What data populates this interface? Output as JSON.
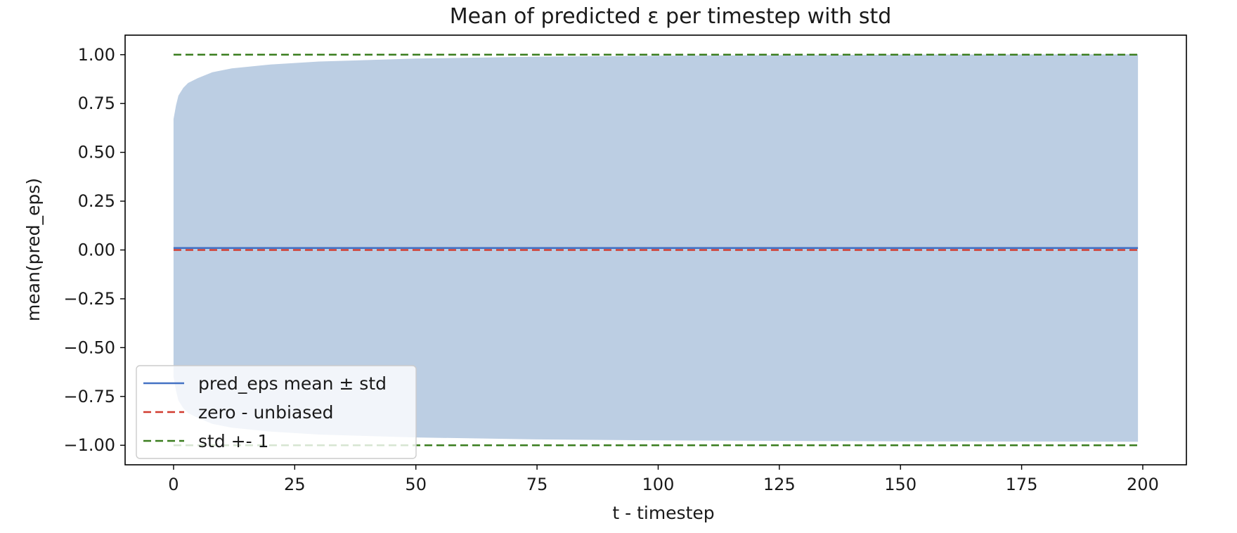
{
  "chart_data": {
    "type": "area",
    "title": "Mean of predicted ε per timestep with std",
    "xlabel": "t - timestep",
    "ylabel": "mean(pred_eps)",
    "xlim": [
      -10,
      209
    ],
    "ylim": [
      -1.1,
      1.1
    ],
    "x_ticks": [
      0,
      25,
      50,
      75,
      100,
      125,
      150,
      175,
      200
    ],
    "y_ticks": [
      1.0,
      0.75,
      0.5,
      0.25,
      0.0,
      -0.25,
      -0.5,
      -0.75,
      -1.0
    ],
    "x_tick_labels": [
      "0",
      "25",
      "50",
      "75",
      "100",
      "125",
      "150",
      "175",
      "200"
    ],
    "y_tick_labels": [
      "1.00",
      "0.75",
      "0.50",
      "0.25",
      "0.00",
      "−0.25",
      "−0.50",
      "−0.75",
      "−1.00"
    ],
    "grid": false,
    "legend_position": "lower-left",
    "series": [
      {
        "name": "pred_eps mean ± std",
        "color": "#4472c4",
        "band_color": "#bccee3",
        "x": [
          0,
          0.5,
          1,
          2,
          3,
          5,
          8,
          12,
          20,
          30,
          50,
          75,
          100,
          150,
          199
        ],
        "mean": [
          0.01,
          0.01,
          0.01,
          0.01,
          0.01,
          0.01,
          0.01,
          0.01,
          0.01,
          0.01,
          0.01,
          0.01,
          0.01,
          0.01,
          0.01
        ],
        "std": [
          0.66,
          0.73,
          0.78,
          0.82,
          0.845,
          0.87,
          0.9,
          0.92,
          0.94,
          0.955,
          0.97,
          0.98,
          0.985,
          0.99,
          0.992
        ]
      },
      {
        "name": "zero - unbiased",
        "color": "#d13b2f",
        "style": "dashed",
        "x": [
          0,
          199
        ],
        "y": [
          0,
          0
        ]
      },
      {
        "name": "std +- 1",
        "color": "#3a7d1e",
        "style": "dashed",
        "lines": [
          {
            "x": [
              0,
              199
            ],
            "y": [
              1,
              1
            ]
          },
          {
            "x": [
              0,
              199
            ],
            "y": [
              -1,
              -1
            ]
          }
        ]
      }
    ]
  }
}
